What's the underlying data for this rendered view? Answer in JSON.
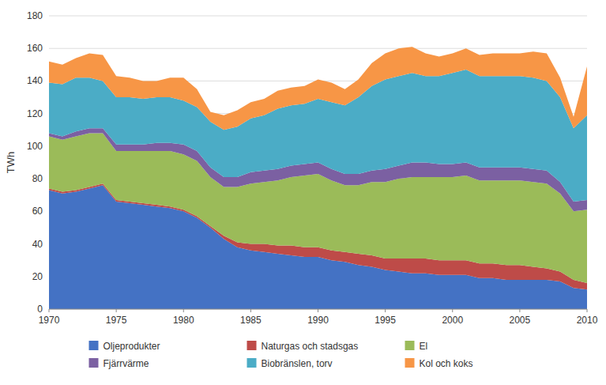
{
  "chart_data": {
    "type": "area",
    "stacked": true,
    "ylabel": "TWh",
    "x": [
      1970,
      1971,
      1972,
      1973,
      1974,
      1975,
      1976,
      1977,
      1978,
      1979,
      1980,
      1981,
      1982,
      1983,
      1984,
      1985,
      1986,
      1987,
      1988,
      1989,
      1990,
      1991,
      1992,
      1993,
      1994,
      1995,
      1996,
      1997,
      1998,
      1999,
      2000,
      2001,
      2002,
      2003,
      2004,
      2005,
      2006,
      2007,
      2008,
      2009,
      2010
    ],
    "series": [
      {
        "name": "Oljeprodukter",
        "color": "#4472C4",
        "values": [
          73,
          71,
          72,
          74,
          76,
          66,
          65,
          64,
          63,
          62,
          60,
          56,
          50,
          43,
          38,
          36,
          35,
          34,
          33,
          32,
          32,
          30,
          29,
          27,
          26,
          24,
          23,
          22,
          22,
          21,
          21,
          21,
          19,
          19,
          18,
          18,
          18,
          18,
          17,
          13,
          12
        ]
      },
      {
        "name": "Naturgas och stadsgas",
        "color": "#BE4B48",
        "values": [
          1,
          1,
          1,
          1,
          1,
          1,
          1,
          1,
          1,
          1,
          1,
          1,
          1,
          2,
          3,
          4,
          5,
          5,
          6,
          6,
          6,
          6,
          6,
          7,
          7,
          7,
          8,
          9,
          9,
          9,
          9,
          9,
          9,
          9,
          9,
          9,
          8,
          7,
          6,
          5,
          4
        ]
      },
      {
        "name": "El",
        "color": "#9BBB59",
        "values": [
          32,
          32,
          33,
          33,
          31,
          30,
          31,
          32,
          33,
          34,
          34,
          34,
          30,
          30,
          34,
          37,
          38,
          40,
          42,
          44,
          45,
          43,
          41,
          42,
          45,
          47,
          49,
          50,
          50,
          51,
          51,
          52,
          51,
          51,
          52,
          52,
          52,
          52,
          48,
          42,
          45
        ]
      },
      {
        "name": "Fjärrvärme",
        "color": "#7B60A2",
        "values": [
          2,
          2,
          3,
          3,
          3,
          4,
          4,
          4,
          5,
          5,
          6,
          6,
          6,
          6,
          6,
          7,
          7,
          7,
          7,
          7,
          7,
          7,
          7,
          7,
          7,
          8,
          8,
          9,
          9,
          8,
          8,
          8,
          8,
          8,
          8,
          8,
          8,
          8,
          7,
          6,
          6
        ]
      },
      {
        "name": "Biobränslen, torv",
        "color": "#4BACC6",
        "values": [
          31,
          32,
          33,
          31,
          29,
          29,
          29,
          28,
          28,
          28,
          27,
          27,
          28,
          29,
          31,
          33,
          34,
          37,
          37,
          37,
          39,
          41,
          42,
          47,
          52,
          55,
          55,
          55,
          53,
          54,
          56,
          57,
          56,
          56,
          56,
          56,
          56,
          55,
          52,
          45,
          52
        ]
      },
      {
        "name": "Kol och koks",
        "color": "#F79646",
        "values": [
          13,
          12,
          12,
          15,
          16,
          13,
          12,
          11,
          10,
          12,
          14,
          11,
          6,
          9,
          10,
          10,
          10,
          11,
          11,
          11,
          12,
          12,
          10,
          11,
          14,
          16,
          17,
          16,
          14,
          12,
          12,
          13,
          13,
          14,
          14,
          14,
          16,
          17,
          12,
          7,
          30
        ]
      }
    ],
    "xlim": [
      1970,
      2010
    ],
    "xticks": [
      1970,
      1975,
      1980,
      1985,
      1990,
      1995,
      2000,
      2005,
      2010
    ],
    "ylim": [
      0,
      180
    ],
    "yticks": [
      0,
      20,
      40,
      60,
      80,
      100,
      120,
      140,
      160,
      180
    ],
    "grid": true,
    "legend": "bottom"
  }
}
